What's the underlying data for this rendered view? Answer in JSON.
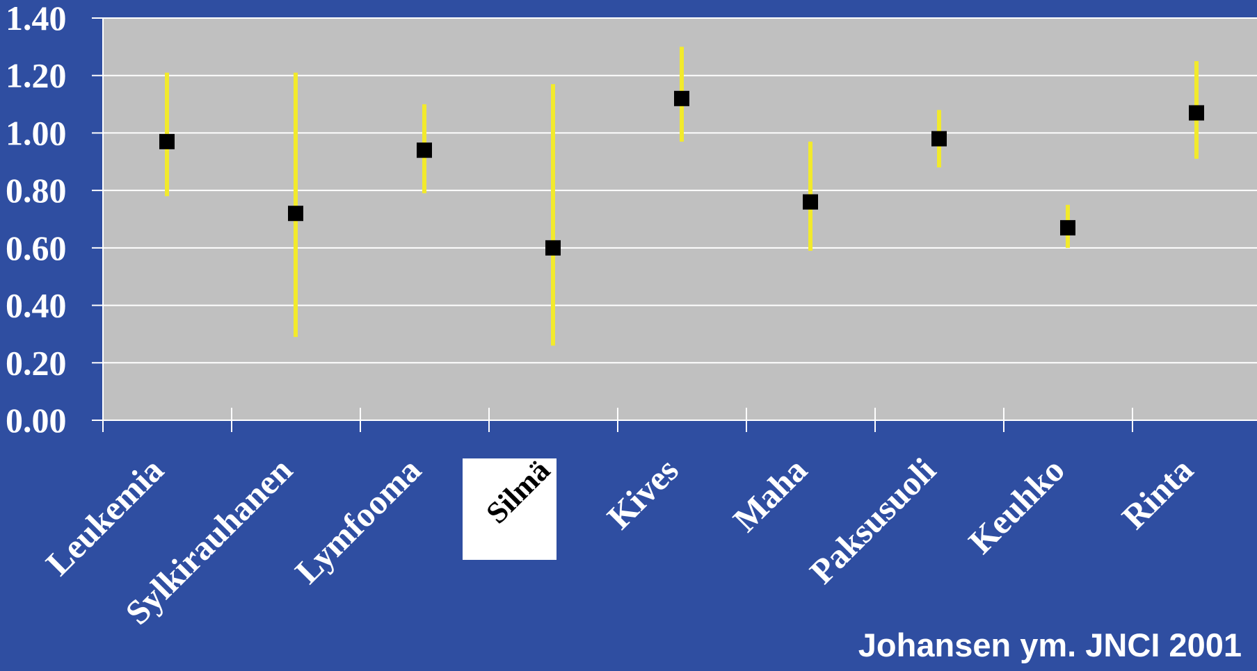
{
  "chart_data": {
    "type": "scatter",
    "categories": [
      "Leukemia",
      "Sylkirauhanen",
      "Lymfooma",
      "Silmä",
      "Kives",
      "Maha",
      "Paksusuoli",
      "Keuhko",
      "Rinta"
    ],
    "highlighted_category": "Silmä",
    "point": [
      0.97,
      0.72,
      0.94,
      0.6,
      1.12,
      0.76,
      0.98,
      0.67,
      1.07
    ],
    "ci_lower": [
      0.78,
      0.29,
      0.79,
      0.26,
      0.97,
      0.59,
      0.88,
      0.6,
      0.91
    ],
    "ci_upper": [
      1.21,
      1.21,
      1.1,
      1.17,
      1.3,
      0.97,
      1.08,
      0.75,
      1.25
    ],
    "ylim": [
      0,
      1.4
    ],
    "yticks": [
      "0.00",
      "0.20",
      "0.40",
      "0.60",
      "0.80",
      "1.00",
      "1.20",
      "1.40"
    ],
    "grid": true,
    "colors": {
      "background": "#2f4ea1",
      "plot_area": "#c0c0c0",
      "gridline": "#ffffff",
      "error_bar": "#f2ea2c",
      "marker": "#000000",
      "highlight_box": "#ffffff"
    }
  },
  "citation": "Johansen ym. JNCI 2001"
}
